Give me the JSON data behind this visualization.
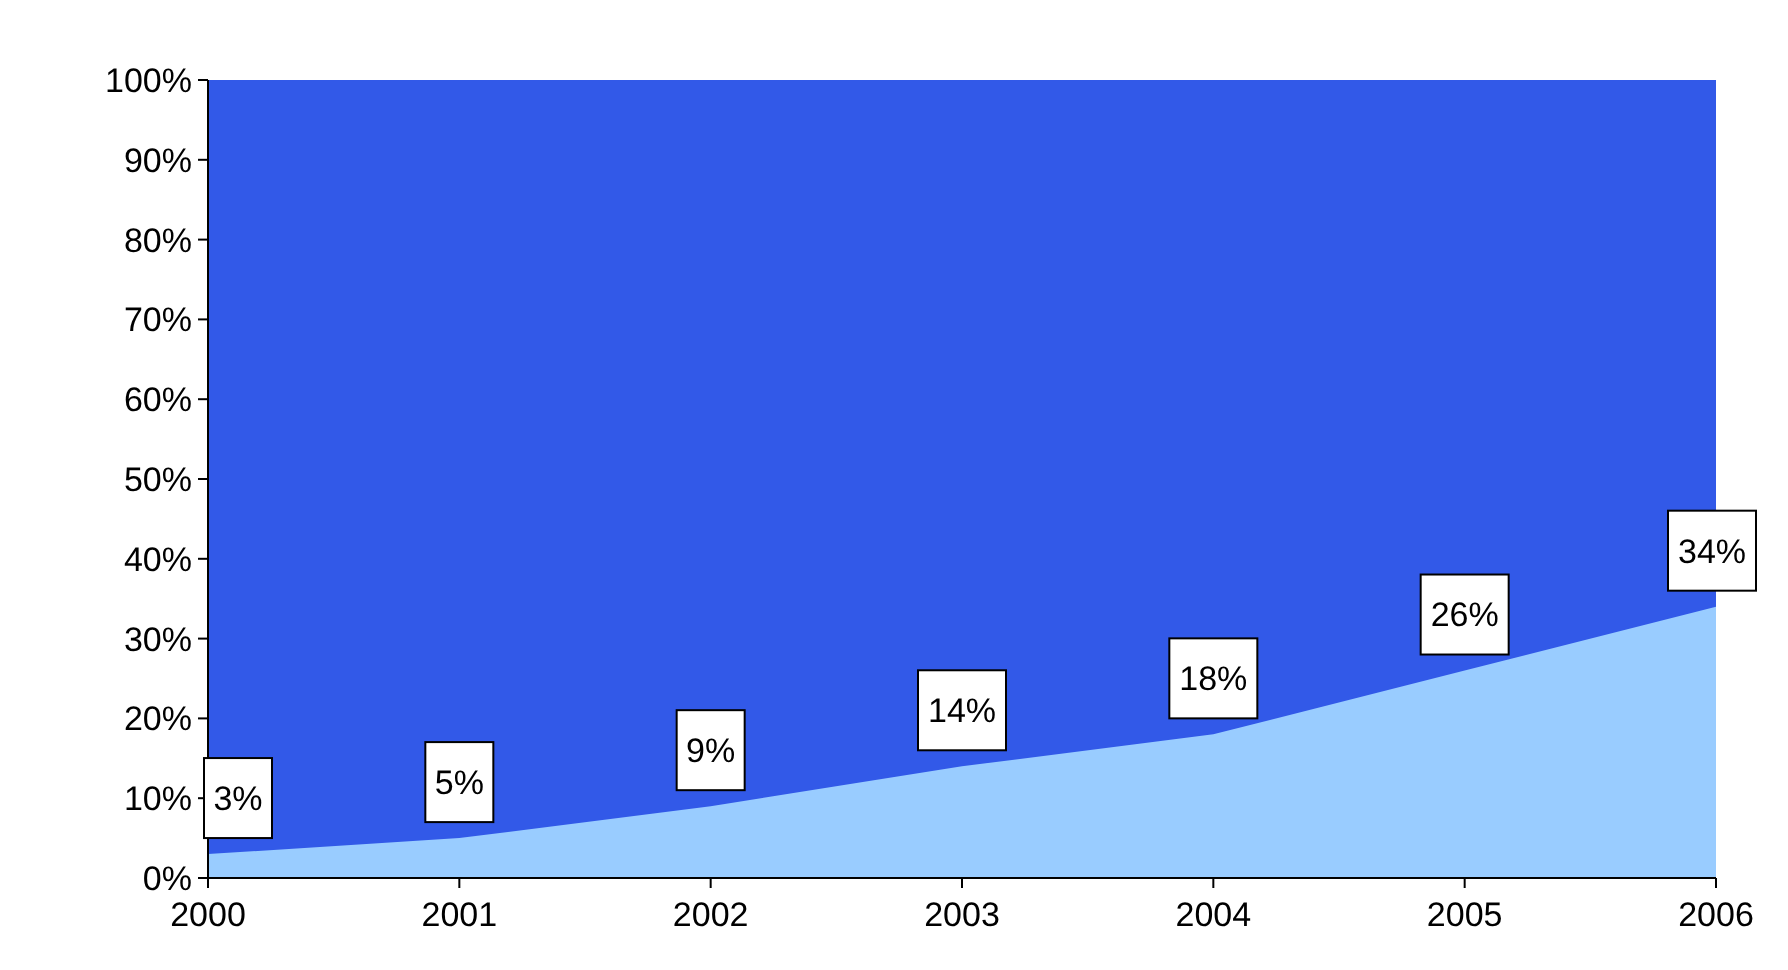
{
  "chart_data": {
    "type": "area",
    "categories": [
      "2000",
      "2001",
      "2002",
      "2003",
      "2004",
      "2005",
      "2006"
    ],
    "series": [
      {
        "color": "#99ccff",
        "values": [
          3,
          5,
          9,
          14,
          18,
          26,
          34
        ],
        "value_labels": [
          "3%",
          "5%",
          "9%",
          "14%",
          "18%",
          "26%",
          "34%"
        ]
      }
    ],
    "bands": [
      {
        "axis": "y",
        "from": 0,
        "to": 100,
        "color": "#3259e8"
      }
    ],
    "ylim": [
      0,
      100
    ],
    "yticks": [
      {
        "value": 0,
        "label": "0%"
      },
      {
        "value": 10,
        "label": "10%"
      },
      {
        "value": 20,
        "label": "20%"
      },
      {
        "value": 30,
        "label": "30%"
      },
      {
        "value": 40,
        "label": "40%"
      },
      {
        "value": 50,
        "label": "50%"
      },
      {
        "value": 60,
        "label": "60%"
      },
      {
        "value": 70,
        "label": "70%"
      },
      {
        "value": 80,
        "label": "80%"
      },
      {
        "value": 90,
        "label": "90%"
      },
      {
        "value": 100,
        "label": "100%"
      }
    ],
    "grid": false
  }
}
